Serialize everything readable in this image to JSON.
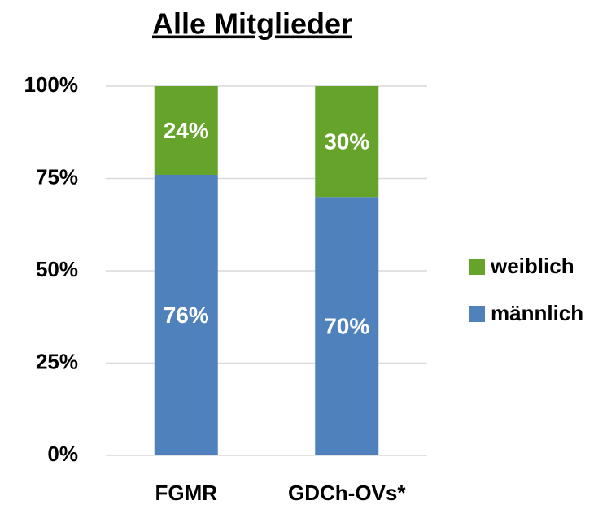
{
  "chart_data": {
    "type": "stacked_bar",
    "title": "Alle Mitglieder",
    "categories": [
      "FGMR",
      "GDCh-OVs*"
    ],
    "series": [
      {
        "name": "männlich",
        "color": "#4f81bd",
        "values": [
          76,
          70
        ],
        "value_labels": [
          "76%",
          "70%"
        ]
      },
      {
        "name": "weiblich",
        "color": "#65a32b",
        "values": [
          24,
          30
        ],
        "value_labels": [
          "24%",
          "30%"
        ]
      }
    ],
    "ylim": [
      0,
      100
    ],
    "yticks": [
      {
        "value": 0,
        "label": "0%"
      },
      {
        "value": 25,
        "label": "25%"
      },
      {
        "value": 50,
        "label": "50%"
      },
      {
        "value": 75,
        "label": "75%"
      },
      {
        "value": 100,
        "label": "100%"
      }
    ],
    "grid": true,
    "legend": "right"
  }
}
